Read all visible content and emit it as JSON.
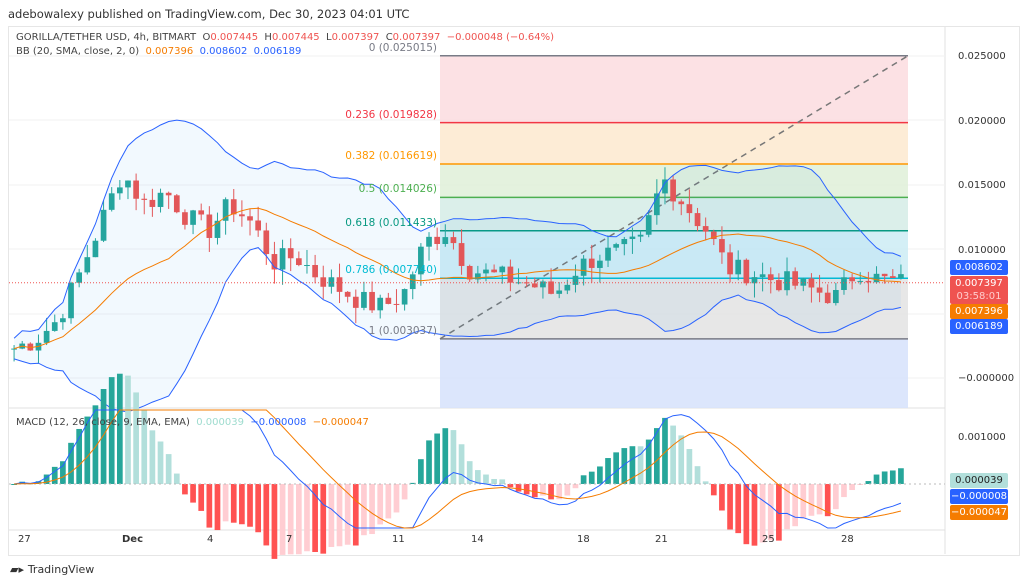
{
  "publisher": "adebowalexy published on TradingView.com, Dec 30, 2023 04:01 UTC",
  "symbol": {
    "name": "GORILLA/TETHER USD, 4h, BITMART",
    "o_label": "O",
    "o": "0.007445",
    "h_label": "H",
    "h": "0.007445",
    "l_label": "L",
    "l": "0.007397",
    "c_label": "C",
    "c": "0.007397",
    "change": "−0.000048 (−0.64%)"
  },
  "bb": {
    "label": "BB (20, SMA, close, 2, 0)",
    "basis": "0.007396",
    "upper": "0.008602",
    "lower": "0.006189"
  },
  "fib": [
    {
      "label": "0 (0.025015)",
      "price": 0.025015,
      "color": "#787b86",
      "fill": "#fcdcdf"
    },
    {
      "label": "0.236 (0.019828)",
      "price": 0.019828,
      "color": "#f23645",
      "fill": "#fde9cf"
    },
    {
      "label": "0.382 (0.016619)",
      "price": 0.016619,
      "color": "#ff9800",
      "fill": "#dff0d8"
    },
    {
      "label": "0.5 (0.014026)",
      "price": 0.014026,
      "color": "#4caf50",
      "fill": "#d5ece6"
    },
    {
      "label": "0.618 (0.011433)",
      "price": 0.011433,
      "color": "#089981",
      "fill": "#ccecf4"
    },
    {
      "label": "0.786 (0.007740)",
      "price": 0.00774,
      "color": "#00bcd4",
      "fill": "#e3e3e3"
    },
    {
      "label": "1 (0.003037)",
      "price": 0.003037,
      "color": "#787b86",
      "fill": "#d6e2fc"
    }
  ],
  "price_axis": [
    "0.025000",
    "0.020000",
    "0.015000",
    "0.010000",
    "−0.000000"
  ],
  "price_tags": {
    "upper": "0.008602",
    "close": "0.007397",
    "countdown": "03:58:01",
    "basis": "0.007396",
    "lower": "0.006189"
  },
  "macd": {
    "label": "MACD (12, 26, close, 9, EMA, EMA)",
    "hist": "0.000039",
    "macd": "−0.000008",
    "signal": "−0.000047",
    "axis": "0.001000",
    "tags": {
      "hist": "0.000039",
      "macd": "−0.000008",
      "signal": "−0.000047"
    }
  },
  "dates": [
    "27",
    "Dec",
    "4",
    "7",
    "11",
    "14",
    "18",
    "21",
    "25",
    "28"
  ],
  "closes": [
    0.0023,
    0.003,
    0.0045,
    0.008,
    0.012,
    0.016,
    0.0135,
    0.0145,
    0.0125,
    0.0115,
    0.0135,
    0.012,
    0.009,
    0.0095,
    0.008,
    0.007,
    0.006,
    0.0055,
    0.0065,
    0.0105,
    0.0115,
    0.0085,
    0.008,
    0.0077,
    0.0072,
    0.0065,
    0.0085,
    0.0095,
    0.0098,
    0.0105,
    0.0155,
    0.0135,
    0.0115,
    0.0085,
    0.0082,
    0.0077,
    0.0073,
    0.0068,
    0.0063,
    0.0085,
    0.0076,
    0.0074
  ],
  "logo": "TradingView"
}
